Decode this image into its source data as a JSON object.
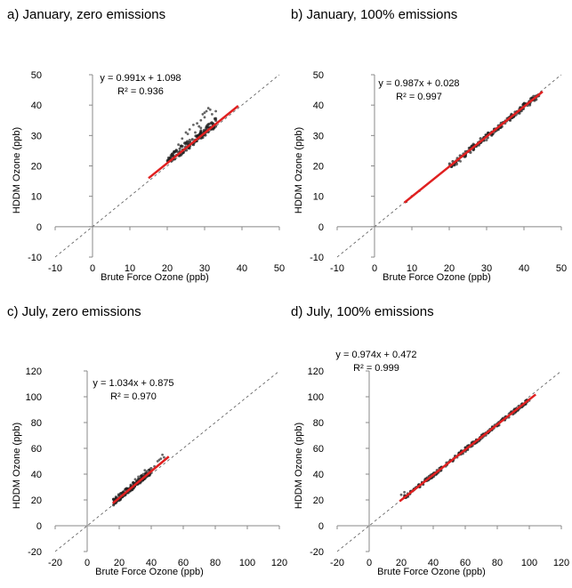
{
  "panels": [
    {
      "title": "a) January, zero emissions"
    },
    {
      "title": "b) January, 100% emissions"
    },
    {
      "title": "c) July, zero emissions"
    },
    {
      "title": "d) July, 100% emissions"
    }
  ],
  "chart_data": [
    {
      "type": "scatter",
      "title": "a) January, zero emissions",
      "xlabel": "Brute Force Ozone (ppb)",
      "ylabel": "HDDM Ozone (ppb)",
      "xlim": [
        -10,
        50
      ],
      "ylim": [
        -10,
        50
      ],
      "xticks": [
        -10,
        0,
        10,
        20,
        30,
        40,
        50
      ],
      "yticks": [
        -10,
        0,
        10,
        20,
        30,
        40,
        50
      ],
      "reference_line": "1:1 dashed",
      "fit": {
        "slope": 0.991,
        "intercept": 1.098,
        "x_range": [
          15,
          39
        ]
      },
      "equation_text": "y = 0.991x + 1.098",
      "r2_text": "R² = 0.936",
      "cluster": {
        "x_range": [
          20,
          33
        ],
        "y_offset": [
          -1,
          2
        ],
        "count": 140
      },
      "scatter_points": [
        [
          25,
          31
        ],
        [
          26,
          32
        ],
        [
          27,
          33.5
        ],
        [
          28,
          34
        ],
        [
          29,
          35
        ],
        [
          29.5,
          37
        ],
        [
          30,
          37.5
        ],
        [
          30.5,
          38
        ],
        [
          31,
          39
        ],
        [
          31.5,
          38.5
        ],
        [
          23,
          27
        ],
        [
          24,
          29
        ],
        [
          25.5,
          30.5
        ],
        [
          27.5,
          31
        ],
        [
          28.5,
          33
        ],
        [
          30,
          36
        ],
        [
          32,
          37
        ],
        [
          33,
          38
        ],
        [
          26,
          28.5
        ],
        [
          29,
          32.5
        ]
      ],
      "fit_color": "#e02020"
    },
    {
      "type": "scatter",
      "title": "b) January, 100% emissions",
      "xlabel": "Brute Force Ozone (ppb)",
      "ylabel": "HDDM Ozone (ppb)",
      "xlim": [
        -10,
        50
      ],
      "ylim": [
        -10,
        50
      ],
      "xticks": [
        -10,
        0,
        10,
        20,
        30,
        40,
        50
      ],
      "yticks": [
        -10,
        0,
        10,
        20,
        30,
        40,
        50
      ],
      "reference_line": "1:1 dashed",
      "fit": {
        "slope": 0.987,
        "intercept": 0.028,
        "x_range": [
          8,
          45
        ]
      },
      "equation_text": "y = 0.987x + 0.028",
      "r2_text": "R² = 0.997",
      "cluster": {
        "x_range": [
          20,
          44
        ],
        "y_offset": [
          -1,
          1
        ],
        "count": 160
      },
      "scatter_points": [
        [
          8.5,
          8.2
        ],
        [
          10,
          10
        ],
        [
          12,
          11.8
        ],
        [
          22,
          20.5
        ],
        [
          23,
          21.5
        ],
        [
          30,
          28.5
        ],
        [
          32,
          31
        ],
        [
          35,
          34
        ],
        [
          38,
          37
        ],
        [
          41,
          40
        ],
        [
          43,
          42.5
        ],
        [
          44,
          43.5
        ]
      ],
      "fit_color": "#e02020"
    },
    {
      "type": "scatter",
      "title": "c) July, zero emissions",
      "xlabel": "Brute Force Ozone (ppb)",
      "ylabel": "HDDM Ozone (ppb)",
      "xlim": [
        -20,
        120
      ],
      "ylim": [
        -20,
        120
      ],
      "xticks": [
        -20,
        0,
        20,
        40,
        60,
        80,
        100,
        120
      ],
      "yticks": [
        -20,
        0,
        20,
        40,
        60,
        80,
        100,
        120
      ],
      "reference_line": "1:1 dashed",
      "fit": {
        "slope": 1.034,
        "intercept": 0.875,
        "x_range": [
          16,
          51
        ]
      },
      "equation_text": "y = 1.034x + 0.875",
      "r2_text": "R² = 0.970",
      "cluster": {
        "x_range": [
          16,
          40
        ],
        "y_offset": [
          -2,
          3
        ],
        "count": 160
      },
      "scatter_points": [
        [
          30,
          36
        ],
        [
          32,
          38
        ],
        [
          35,
          40
        ],
        [
          38,
          42
        ],
        [
          40,
          44
        ],
        [
          42,
          46
        ],
        [
          44,
          50
        ],
        [
          46,
          52
        ],
        [
          48,
          53
        ],
        [
          47,
          55
        ],
        [
          45,
          51
        ],
        [
          36,
          43
        ]
      ],
      "fit_color": "#e02020"
    },
    {
      "type": "scatter",
      "title": "d) July, 100% emissions",
      "xlabel": "Brute Force Ozone (ppb)",
      "ylabel": "HDDM Ozone (ppb)",
      "xlim": [
        -20,
        120
      ],
      "ylim": [
        -20,
        120
      ],
      "xticks": [
        -20,
        0,
        20,
        40,
        60,
        80,
        100,
        120
      ],
      "yticks": [
        -20,
        0,
        20,
        40,
        60,
        80,
        100,
        120
      ],
      "reference_line": "1:1 dashed",
      "fit": {
        "slope": 0.974,
        "intercept": 0.472,
        "x_range": [
          19,
          104
        ]
      },
      "equation_text": "y = 0.974x + 0.472",
      "r2_text": "R² = 0.999",
      "cluster": {
        "x_range": [
          22,
          100
        ],
        "y_offset": [
          -1.5,
          1.5
        ],
        "count": 200
      },
      "scatter_points": [
        [
          20,
          24
        ],
        [
          22,
          26
        ],
        [
          24,
          25
        ],
        [
          45,
          44
        ],
        [
          55,
          53
        ],
        [
          70,
          68
        ],
        [
          85,
          83
        ],
        [
          100,
          97
        ]
      ],
      "fit_color": "#e02020"
    }
  ]
}
